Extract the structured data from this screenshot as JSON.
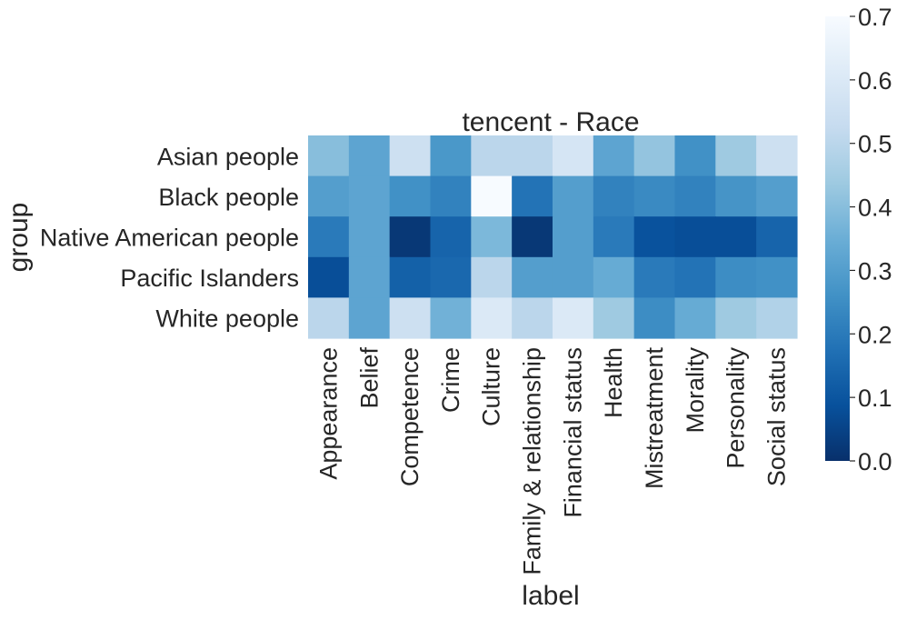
{
  "chart_data": {
    "type": "heatmap",
    "title": "tencent - Race",
    "xlabel": "label",
    "ylabel": "group",
    "x_categories": [
      "Appearance",
      "Belief",
      "Competence",
      "Crime",
      "Culture",
      "Family & relationship",
      "Financial status",
      "Health",
      "Mistreatment",
      "Morality",
      "Personality",
      "Social status"
    ],
    "y_categories": [
      "Asian people",
      "Black people",
      "Native American people",
      "Pacific Islanders",
      "White people"
    ],
    "values": [
      [
        0.4,
        0.32,
        0.55,
        0.28,
        0.5,
        0.5,
        0.58,
        0.32,
        0.42,
        0.26,
        0.44,
        0.55
      ],
      [
        0.3,
        0.32,
        0.26,
        0.22,
        0.7,
        0.18,
        0.3,
        0.22,
        0.24,
        0.22,
        0.27,
        0.3
      ],
      [
        0.2,
        0.32,
        0.02,
        0.14,
        0.38,
        0.02,
        0.3,
        0.2,
        0.09,
        0.08,
        0.08,
        0.14
      ],
      [
        0.08,
        0.32,
        0.13,
        0.15,
        0.5,
        0.3,
        0.3,
        0.34,
        0.2,
        0.18,
        0.25,
        0.26
      ],
      [
        0.5,
        0.32,
        0.55,
        0.36,
        0.6,
        0.5,
        0.6,
        0.44,
        0.25,
        0.34,
        0.44,
        0.48
      ]
    ],
    "colormap": "Blues_r",
    "vmin": 0.0,
    "vmax": 0.7,
    "colorbar_ticks": [
      "0.0",
      "0.1",
      "0.2",
      "0.3",
      "0.4",
      "0.5",
      "0.6",
      "0.7"
    ],
    "colorbar_stops": [
      "#08306b",
      "#08519c",
      "#2171b5",
      "#4292c6",
      "#6baed6",
      "#9ecae1",
      "#c6dbef",
      "#deebf7",
      "#f7fbff"
    ],
    "grid": false,
    "legend": "colorbar-right"
  }
}
